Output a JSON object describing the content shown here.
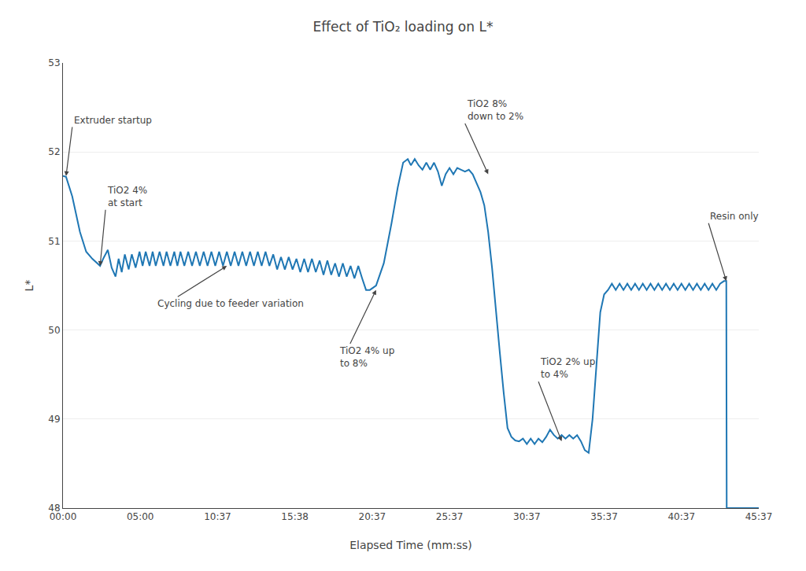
{
  "chart_data": {
    "type": "line",
    "title": "Effect of TiO₂ loading on L*",
    "x_label": "Elapsed Time (mm:ss)",
    "y_label": "L*",
    "xlim": [
      0,
      9
    ],
    "ylim": [
      48,
      53
    ],
    "xticks": [
      {
        "value": 0,
        "label": "00:00"
      },
      {
        "value": 1,
        "label": "05:00"
      },
      {
        "value": 2,
        "label": "10:37"
      },
      {
        "value": 3,
        "label": "15:38"
      },
      {
        "value": 4,
        "label": "20:37"
      },
      {
        "value": 5,
        "label": "25:37"
      },
      {
        "value": 6,
        "label": "30:37"
      },
      {
        "value": 7,
        "label": "35:37"
      },
      {
        "value": 8,
        "label": "40:37"
      },
      {
        "value": 9,
        "label": "45:37"
      }
    ],
    "yticks": [
      48,
      49,
      50,
      51,
      52,
      53
    ],
    "grid": true,
    "x": [
      0.0,
      0.04,
      0.12,
      0.22,
      0.3,
      0.38,
      0.48,
      0.52,
      0.58,
      0.63,
      0.68,
      0.72,
      0.76,
      0.8,
      0.85,
      0.89,
      0.94,
      0.99,
      1.03,
      1.07,
      1.12,
      1.16,
      1.2,
      1.25,
      1.3,
      1.34,
      1.39,
      1.44,
      1.48,
      1.52,
      1.57,
      1.62,
      1.67,
      1.72,
      1.77,
      1.82,
      1.87,
      1.92,
      1.97,
      2.02,
      2.07,
      2.12,
      2.17,
      2.22,
      2.27,
      2.32,
      2.37,
      2.42,
      2.47,
      2.52,
      2.57,
      2.62,
      2.67,
      2.72,
      2.77,
      2.82,
      2.87,
      2.92,
      2.97,
      3.02,
      3.07,
      3.12,
      3.17,
      3.22,
      3.27,
      3.32,
      3.37,
      3.42,
      3.47,
      3.52,
      3.57,
      3.62,
      3.67,
      3.72,
      3.77,
      3.82,
      3.87,
      3.92,
      3.97,
      4.05,
      4.15,
      4.25,
      4.33,
      4.4,
      4.46,
      4.5,
      4.55,
      4.6,
      4.65,
      4.7,
      4.75,
      4.8,
      4.85,
      4.9,
      4.95,
      5.0,
      5.05,
      5.1,
      5.15,
      5.2,
      5.25,
      5.3,
      5.35,
      5.4,
      5.45,
      5.5,
      5.55,
      5.6,
      5.65,
      5.7,
      5.75,
      5.8,
      5.85,
      5.9,
      5.95,
      6.0,
      6.05,
      6.1,
      6.15,
      6.2,
      6.25,
      6.3,
      6.35,
      6.4,
      6.45,
      6.5,
      6.55,
      6.6,
      6.65,
      6.7,
      6.75,
      6.8,
      6.85,
      6.9,
      6.95,
      7.0,
      7.05,
      7.1,
      7.15,
      7.2,
      7.25,
      7.3,
      7.35,
      7.4,
      7.45,
      7.5,
      7.55,
      7.6,
      7.65,
      7.7,
      7.75,
      7.8,
      7.85,
      7.9,
      7.95,
      8.0,
      8.05,
      8.1,
      8.15,
      8.2,
      8.25,
      8.3,
      8.35,
      8.4,
      8.45,
      8.5,
      8.55,
      8.58,
      8.585,
      8.9,
      9.0
    ],
    "values": [
      51.73,
      51.72,
      51.5,
      51.1,
      50.88,
      50.8,
      50.72,
      50.8,
      50.9,
      50.7,
      50.6,
      50.8,
      50.65,
      50.85,
      50.68,
      50.85,
      50.7,
      50.88,
      50.72,
      50.88,
      50.72,
      50.88,
      50.72,
      50.88,
      50.72,
      50.88,
      50.72,
      50.88,
      50.72,
      50.88,
      50.72,
      50.88,
      50.72,
      50.88,
      50.72,
      50.88,
      50.72,
      50.88,
      50.72,
      50.88,
      50.72,
      50.88,
      50.72,
      50.88,
      50.72,
      50.88,
      50.72,
      50.88,
      50.72,
      50.88,
      50.72,
      50.88,
      50.72,
      50.85,
      50.68,
      50.82,
      50.68,
      50.82,
      50.68,
      50.8,
      50.65,
      50.8,
      50.65,
      50.8,
      50.65,
      50.78,
      50.62,
      50.78,
      50.62,
      50.75,
      50.6,
      50.75,
      50.6,
      50.72,
      50.58,
      50.72,
      50.58,
      50.45,
      50.45,
      50.5,
      50.75,
      51.2,
      51.6,
      51.88,
      51.92,
      51.85,
      51.92,
      51.85,
      51.8,
      51.88,
      51.8,
      51.88,
      51.78,
      51.62,
      51.75,
      51.82,
      51.75,
      51.82,
      51.8,
      51.78,
      51.8,
      51.75,
      51.65,
      51.55,
      51.4,
      51.1,
      50.7,
      50.2,
      49.75,
      49.3,
      48.9,
      48.8,
      48.76,
      48.75,
      48.78,
      48.72,
      48.78,
      48.72,
      48.78,
      48.74,
      48.8,
      48.88,
      48.82,
      48.78,
      48.82,
      48.78,
      48.82,
      48.78,
      48.82,
      48.75,
      48.65,
      48.62,
      49.0,
      49.6,
      50.2,
      50.4,
      50.45,
      50.52,
      50.45,
      50.52,
      50.45,
      50.52,
      50.45,
      50.52,
      50.45,
      50.52,
      50.45,
      50.52,
      50.45,
      50.52,
      50.45,
      50.52,
      50.45,
      50.52,
      50.45,
      50.52,
      50.45,
      50.52,
      50.45,
      50.52,
      50.45,
      50.52,
      50.45,
      50.52,
      50.45,
      50.52,
      50.55,
      50.55,
      48.0,
      48.0,
      48.0
    ],
    "annotations": [
      {
        "text": "Extruder startup",
        "x": 0.04,
        "y": 51.73,
        "text_x": 0.12,
        "text_y": 52.28
      },
      {
        "text": "TiO2 4%\nat start",
        "x": 0.48,
        "y": 50.72,
        "text_x": 0.55,
        "text_y": 51.35
      },
      {
        "text": "Cycling due to feeder variation",
        "x": 2.12,
        "y": 50.72,
        "text_x": 1.2,
        "text_y": 50.22
      },
      {
        "text": "TiO2 4% up\nto 8%",
        "x": 4.05,
        "y": 50.45,
        "text_x": 3.55,
        "text_y": 49.55
      },
      {
        "text": "TiO2 8%\ndown to 2%",
        "x": 5.5,
        "y": 51.75,
        "text_x": 5.2,
        "text_y": 52.32
      },
      {
        "text": "TiO2 2% up\nto 4%",
        "x": 6.45,
        "y": 48.75,
        "text_x": 6.15,
        "text_y": 49.42
      },
      {
        "text": "Resin only",
        "x": 8.58,
        "y": 50.55,
        "text_x": 8.35,
        "text_y": 51.2
      }
    ]
  }
}
